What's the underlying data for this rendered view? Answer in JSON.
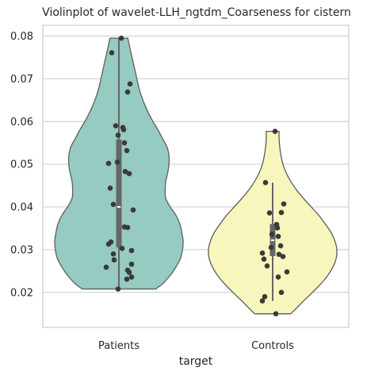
{
  "chart_data": {
    "type": "violin",
    "title": "Violinplot of wavelet-LLH_ngtdm_Coarseness for cistern",
    "xlabel": "target",
    "ylabel": "",
    "ylim": [
      0.0118,
      0.0825
    ],
    "yticks": [
      0.02,
      0.03,
      0.04,
      0.05,
      0.06,
      0.07,
      0.08
    ],
    "ytick_labels": [
      "0.02",
      "0.03",
      "0.04",
      "0.05",
      "0.06",
      "0.07",
      "0.08"
    ],
    "grid": true,
    "categories": [
      "Patients",
      "Controls"
    ],
    "series": [
      {
        "category": "Patients",
        "color": "#95cbc1",
        "min": 0.0208,
        "max": 0.0795,
        "q1": 0.0305,
        "median": 0.04,
        "q3": 0.0558,
        "whisker_low": 0.0208,
        "whisker_high": 0.0795,
        "density": [
          [
            0.0208,
            0.57
          ],
          [
            0.022,
            0.68
          ],
          [
            0.024,
            0.8
          ],
          [
            0.026,
            0.89
          ],
          [
            0.028,
            0.96
          ],
          [
            0.03,
            0.99
          ],
          [
            0.032,
            1.0
          ],
          [
            0.034,
            0.98
          ],
          [
            0.036,
            0.95
          ],
          [
            0.038,
            0.89
          ],
          [
            0.04,
            0.8
          ],
          [
            0.042,
            0.73
          ],
          [
            0.044,
            0.72
          ],
          [
            0.046,
            0.73
          ],
          [
            0.048,
            0.76
          ],
          [
            0.05,
            0.78
          ],
          [
            0.052,
            0.78
          ],
          [
            0.054,
            0.75
          ],
          [
            0.056,
            0.68
          ],
          [
            0.058,
            0.61
          ],
          [
            0.06,
            0.53
          ],
          [
            0.062,
            0.46
          ],
          [
            0.064,
            0.4
          ],
          [
            0.066,
            0.35
          ],
          [
            0.068,
            0.31
          ],
          [
            0.07,
            0.28
          ],
          [
            0.072,
            0.25
          ],
          [
            0.074,
            0.22
          ],
          [
            0.076,
            0.19
          ],
          [
            0.078,
            0.16
          ],
          [
            0.0795,
            0.14
          ]
        ],
        "points": [
          0.0795,
          0.0761,
          0.0688,
          0.0669,
          0.059,
          0.0586,
          0.0581,
          0.0568,
          0.055,
          0.0532,
          0.0505,
          0.0502,
          0.0483,
          0.0478,
          0.0444,
          0.0406,
          0.0393,
          0.0353,
          0.0352,
          0.0318,
          0.0313,
          0.0303,
          0.0298,
          0.029,
          0.0276,
          0.0266,
          0.0259,
          0.0252,
          0.0247,
          0.0236,
          0.0231,
          0.0208
        ]
      },
      {
        "category": "Controls",
        "color": "#f7f7bd",
        "min": 0.015,
        "max": 0.0577,
        "q1": 0.0285,
        "median": 0.0322,
        "q3": 0.036,
        "whisker_low": 0.018,
        "whisker_high": 0.0457,
        "density": [
          [
            0.015,
            0.28
          ],
          [
            0.016,
            0.35
          ],
          [
            0.018,
            0.48
          ],
          [
            0.02,
            0.62
          ],
          [
            0.022,
            0.75
          ],
          [
            0.024,
            0.86
          ],
          [
            0.026,
            0.94
          ],
          [
            0.028,
            0.99
          ],
          [
            0.03,
            1.0
          ],
          [
            0.032,
            0.97
          ],
          [
            0.034,
            0.91
          ],
          [
            0.036,
            0.82
          ],
          [
            0.038,
            0.72
          ],
          [
            0.04,
            0.6
          ],
          [
            0.042,
            0.48
          ],
          [
            0.044,
            0.37
          ],
          [
            0.046,
            0.28
          ],
          [
            0.048,
            0.21
          ],
          [
            0.05,
            0.16
          ],
          [
            0.052,
            0.13
          ],
          [
            0.054,
            0.11
          ],
          [
            0.056,
            0.1
          ],
          [
            0.0577,
            0.1
          ]
        ],
        "points": [
          0.0577,
          0.0457,
          0.0407,
          0.0387,
          0.0386,
          0.0359,
          0.0351,
          0.0336,
          0.0331,
          0.0309,
          0.0305,
          0.0292,
          0.0289,
          0.0284,
          0.0278,
          0.0262,
          0.0248,
          0.0236,
          0.02,
          0.019,
          0.018,
          0.015
        ]
      }
    ]
  }
}
